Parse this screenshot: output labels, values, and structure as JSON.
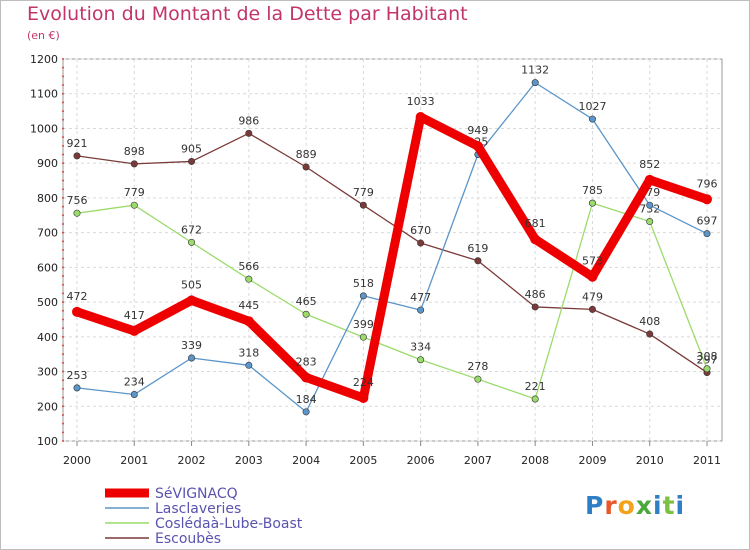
{
  "header": {
    "title": "Evolution du Montant de la Dette par Habitant",
    "unit": "(en €)"
  },
  "chart_data": {
    "type": "line",
    "title": "Evolution du Montant de la Dette par Habitant",
    "subtitle": "(en €)",
    "xlabel": "",
    "ylabel": "",
    "x": [
      "2000",
      "2001",
      "2002",
      "2003",
      "2004",
      "2005",
      "2006",
      "2007",
      "2008",
      "2009",
      "2010",
      "2011"
    ],
    "yticks": [
      100,
      200,
      300,
      400,
      500,
      600,
      700,
      800,
      900,
      1000,
      1100,
      1200
    ],
    "ylim": [
      100,
      1200
    ],
    "grid": true,
    "legend_position": "bottom-left",
    "series": [
      {
        "name": "SéVIGNACQ",
        "color": "#ee0000",
        "values": [
          472,
          417,
          505,
          445,
          283,
          224,
          1033,
          949,
          681,
          573,
          852,
          796
        ],
        "labels": [
          "472",
          "417",
          "505",
          "445",
          "283",
          "224",
          "1033",
          "949",
          "681",
          "573",
          "852",
          "796"
        ]
      },
      {
        "name": "Lasclaveries",
        "color": "#5b95c9",
        "values": [
          253,
          234,
          339,
          318,
          184,
          518,
          477,
          925,
          1132,
          1027,
          779,
          697
        ],
        "labels": [
          "253",
          "234",
          "339",
          "318",
          "184",
          "518",
          "477",
          "925",
          "1132",
          "1027",
          "779",
          "697"
        ]
      },
      {
        "name": "Coslédaà-Lube-Boast",
        "color": "#9bdb6b",
        "values": [
          756,
          779,
          672,
          566,
          465,
          399,
          334,
          278,
          221,
          785,
          732,
          308
        ],
        "labels": [
          "756",
          "779",
          "672",
          "566",
          "465",
          "399",
          "334",
          "278",
          "221",
          "785",
          "732",
          "308"
        ]
      },
      {
        "name": "Escoubès",
        "color": "#7a3a3a",
        "values": [
          921,
          898,
          905,
          986,
          889,
          779,
          670,
          619,
          486,
          479,
          408,
          297
        ],
        "labels": [
          "921",
          "898",
          "905",
          "986",
          "889",
          "779",
          "670",
          "619",
          "486",
          "479",
          "408",
          "297"
        ]
      }
    ]
  },
  "logo": {
    "text": "Proxiti"
  }
}
